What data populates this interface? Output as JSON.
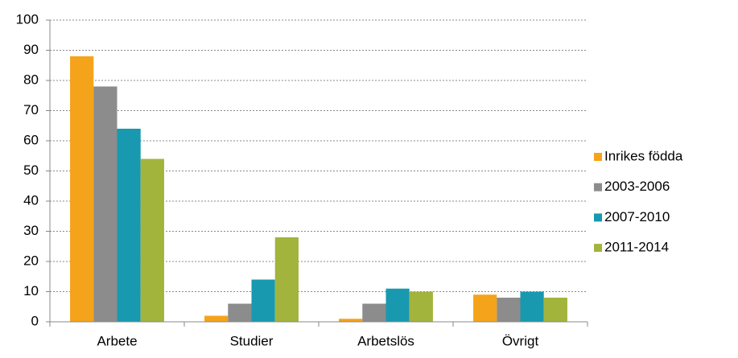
{
  "chart_data": {
    "type": "bar",
    "categories": [
      "Arbete",
      "Studier",
      "Arbetslös",
      "Övrigt"
    ],
    "series": [
      {
        "name": "Inrikes födda",
        "color": "#f5a31a",
        "values": [
          88,
          2,
          1,
          9
        ]
      },
      {
        "name": "2003-2006",
        "color": "#8c8c8c",
        "values": [
          78,
          6,
          6,
          8
        ]
      },
      {
        "name": "2007-2010",
        "color": "#1899b0",
        "values": [
          64,
          14,
          11,
          10
        ]
      },
      {
        "name": "2011-2014",
        "color": "#a3b43c",
        "values": [
          54,
          28,
          10,
          8
        ]
      }
    ],
    "ylim": [
      0,
      100
    ],
    "yticks": [
      0,
      10,
      20,
      30,
      40,
      50,
      60,
      70,
      80,
      90,
      100
    ],
    "grid": true,
    "legend": "right"
  }
}
